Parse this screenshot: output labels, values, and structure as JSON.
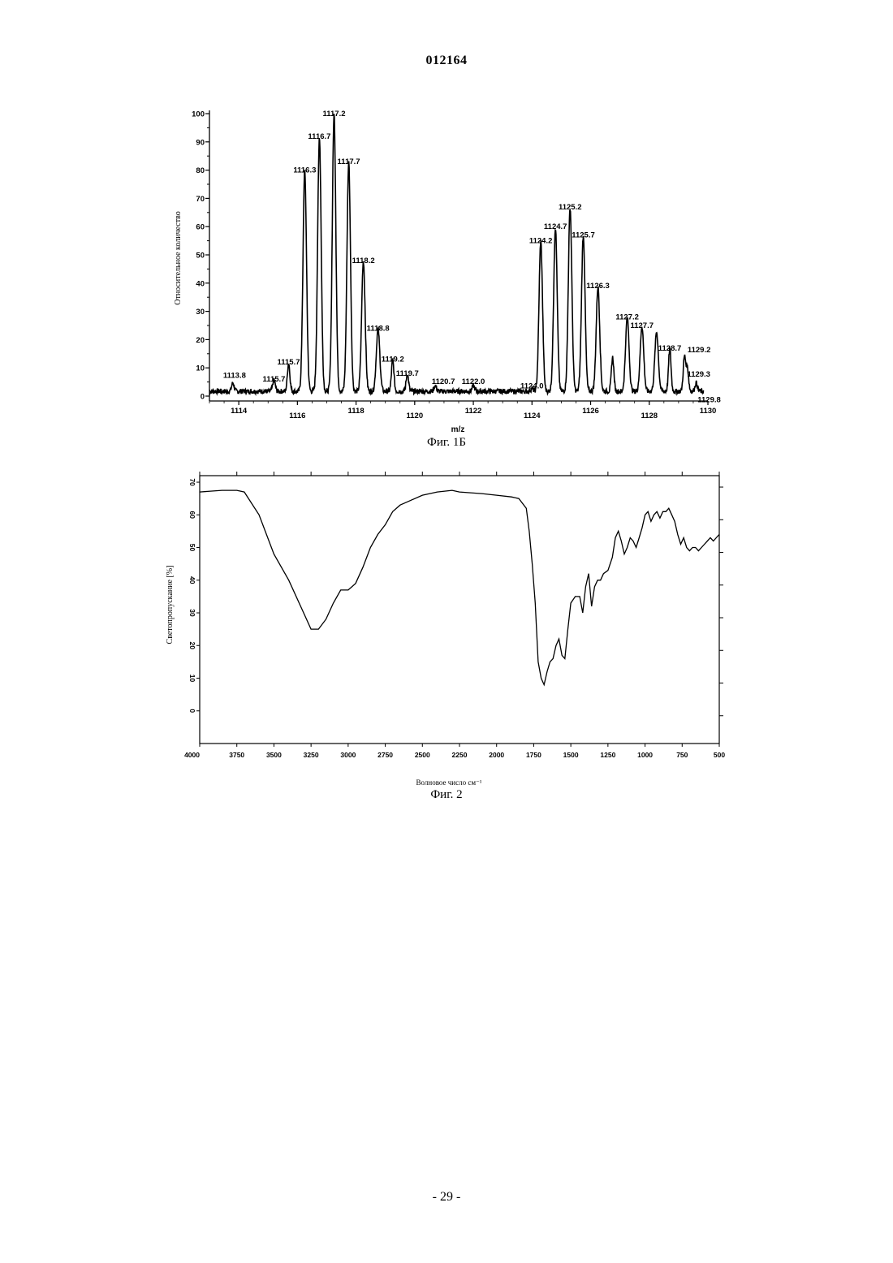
{
  "header": {
    "doc_number": "012164"
  },
  "figures": [
    {
      "caption": "Фиг. 1Б"
    },
    {
      "caption": "Фиг. 2"
    }
  ],
  "footer": {
    "page_number": "- 29 -"
  },
  "chart_data": [
    {
      "type": "line",
      "title": "",
      "xlabel": "m/z",
      "ylabel": "Относительное количество",
      "xlim": [
        1113,
        1130
      ],
      "ylim": [
        0,
        100
      ],
      "x_ticks": [
        "1114",
        "1116",
        "1118",
        "1120",
        "1122",
        "1124",
        "1126",
        "1128",
        "1130"
      ],
      "y_ticks": [
        "0",
        "10",
        "20",
        "30",
        "40",
        "50",
        "60",
        "70",
        "80",
        "90",
        "100"
      ],
      "peaks": [
        {
          "label": "1113.8",
          "x": 1113.8,
          "y": 3
        },
        {
          "label": "1115.7",
          "x": 1115.2,
          "y": 4
        },
        {
          "label": "1115.7",
          "x": 1115.7,
          "y": 10
        },
        {
          "label": "1116.3",
          "x": 1116.25,
          "y": 78
        },
        {
          "label": "1116.7",
          "x": 1116.75,
          "y": 90
        },
        {
          "label": "1117.2",
          "x": 1117.25,
          "y": 98
        },
        {
          "label": "1117.7",
          "x": 1117.75,
          "y": 81
        },
        {
          "label": "1118.2",
          "x": 1118.25,
          "y": 46
        },
        {
          "label": "1118.8",
          "x": 1118.75,
          "y": 22
        },
        {
          "label": "1119.2",
          "x": 1119.25,
          "y": 11
        },
        {
          "label": "1119.7",
          "x": 1119.75,
          "y": 6
        },
        {
          "label": "1120.7",
          "x": 1120.7,
          "y": 2
        },
        {
          "label": "1122.0",
          "x": 1122.0,
          "y": 2
        },
        {
          "label": "1124.0",
          "x": 1124.0,
          "y": 1
        },
        {
          "label": "1124.2",
          "x": 1124.3,
          "y": 53
        },
        {
          "label": "1124.7",
          "x": 1124.8,
          "y": 58
        },
        {
          "label": "1125.2",
          "x": 1125.3,
          "y": 65
        },
        {
          "label": "1125.7",
          "x": 1125.75,
          "y": 55
        },
        {
          "label": "1126.3",
          "x": 1126.25,
          "y": 37
        },
        {
          "label": "1127.2",
          "x": 1127.25,
          "y": 26
        },
        {
          "label": "1127.7",
          "x": 1127.75,
          "y": 23
        },
        {
          "label": "1128.7",
          "x": 1128.7,
          "y": 15
        },
        {
          "label": "1129.2",
          "x": 1129.2,
          "y": 12
        },
        {
          "label": "1129.3",
          "x": 1129.3,
          "y": 8
        },
        {
          "label": "1129.8",
          "x": 1129.6,
          "y": 3
        }
      ],
      "extra_peaks": [
        {
          "x": 1126.75,
          "y": 12
        },
        {
          "x": 1128.25,
          "y": 21
        }
      ]
    },
    {
      "type": "line",
      "title": "",
      "xlabel": "Волновое число см⁻¹",
      "ylabel": "Светопропускание [%]",
      "xlim": [
        4000,
        500
      ],
      "ylim": [
        -10,
        72
      ],
      "x_ticks": [
        "4000",
        "3750",
        "3500",
        "3250",
        "3000",
        "2750",
        "2500",
        "2250",
        "2000",
        "1750",
        "1500",
        "1250",
        "1000",
        "750",
        "500"
      ],
      "y_ticks": [
        "0",
        "10",
        "20",
        "30",
        "40",
        "50",
        "60",
        "70"
      ],
      "x": [
        4000,
        3850,
        3750,
        3700,
        3600,
        3500,
        3400,
        3300,
        3250,
        3200,
        3150,
        3100,
        3050,
        3000,
        2950,
        2900,
        2850,
        2800,
        2750,
        2700,
        2650,
        2600,
        2500,
        2400,
        2300,
        2250,
        2100,
        2000,
        1900,
        1850,
        1800,
        1780,
        1760,
        1740,
        1720,
        1700,
        1680,
        1660,
        1640,
        1620,
        1600,
        1580,
        1560,
        1540,
        1520,
        1500,
        1470,
        1440,
        1420,
        1400,
        1380,
        1360,
        1340,
        1320,
        1300,
        1280,
        1250,
        1220,
        1200,
        1180,
        1160,
        1140,
        1120,
        1100,
        1080,
        1060,
        1040,
        1020,
        1000,
        980,
        960,
        940,
        920,
        900,
        880,
        860,
        840,
        820,
        800,
        780,
        760,
        740,
        720,
        700,
        680,
        660,
        640,
        620,
        600,
        580,
        560,
        540,
        520,
        500
      ],
      "y": [
        67,
        67.5,
        67.5,
        67,
        60,
        48,
        40,
        30,
        25,
        25,
        28,
        33,
        37,
        37,
        39,
        44,
        50,
        54,
        57,
        61,
        63,
        64,
        66,
        67,
        67.5,
        67,
        66.5,
        66,
        65.5,
        65,
        62,
        55,
        45,
        33,
        15,
        10,
        8,
        12,
        15,
        16,
        20,
        22,
        17,
        16,
        25,
        33,
        35,
        35,
        30,
        38,
        42,
        32,
        38,
        40,
        40,
        42,
        43,
        47,
        53,
        55,
        52,
        48,
        50,
        53,
        52,
        50,
        53,
        56,
        60,
        61,
        58,
        60,
        61,
        59,
        61,
        61,
        62,
        60,
        58,
        54,
        51,
        53,
        50,
        49,
        50,
        50,
        49,
        50,
        51,
        52,
        53,
        52,
        53,
        54
      ]
    }
  ]
}
